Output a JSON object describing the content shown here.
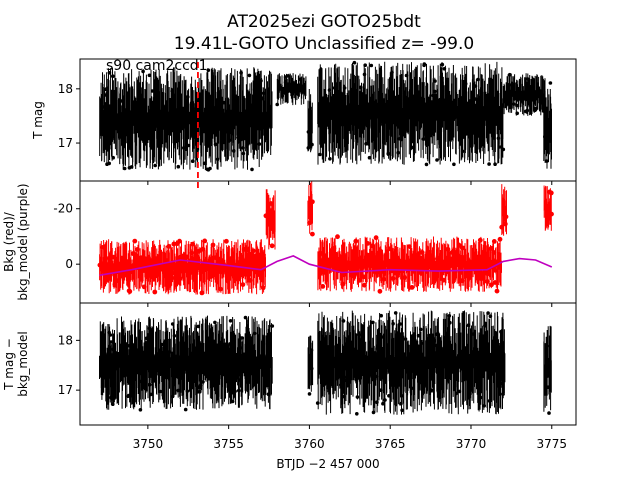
{
  "chart_data": [
    {
      "type": "scatter",
      "panel": "top",
      "title": "AT2025ezi  GOTO25bdt",
      "subtitle": "19.41L-GOTO Unclassified z= -99.0",
      "annotation": "s90 cam2ccd1",
      "ylabel": "T mag",
      "ylim": [
        18.55,
        16.3
      ],
      "yticks": [
        17,
        18
      ],
      "marker_line_x": 3753.1,
      "colors": {
        "points": "#000000",
        "marker_line": "#ff0000"
      },
      "series": [
        {
          "name": "T mag",
          "x_range": [
            3747.0,
            3757.7
          ],
          "y_range": [
            16.5,
            18.4
          ]
        },
        {
          "name": "T mag",
          "x_range": [
            3758.0,
            3759.8
          ],
          "y_range": [
            17.7,
            18.3
          ]
        },
        {
          "name": "T mag",
          "x_range": [
            3759.9,
            3760.2
          ],
          "y_range": [
            16.7,
            18.0
          ]
        },
        {
          "name": "T mag",
          "x_range": [
            3760.5,
            3772.0
          ],
          "y_range": [
            16.6,
            18.5
          ]
        },
        {
          "name": "T mag",
          "x_range": [
            3772.0,
            3774.5
          ],
          "y_range": [
            17.5,
            18.3
          ]
        },
        {
          "name": "T mag",
          "x_range": [
            3774.5,
            3775.0
          ],
          "y_range": [
            16.5,
            18.2
          ]
        }
      ]
    },
    {
      "type": "scatter",
      "panel": "middle",
      "ylabel": "Bkg (red)/\nbkg_model (purple)",
      "ylim": [
        -30,
        14
      ],
      "yticks": [
        0,
        -20
      ],
      "colors": {
        "bkg": "#ff0000",
        "bkg_model": "#bf00bf"
      },
      "series": [
        {
          "name": "Bkg",
          "x_range": [
            3747.0,
            3757.3
          ],
          "y_range": [
            -9,
            11
          ]
        },
        {
          "name": "Bkg",
          "x_range": [
            3757.3,
            3757.9
          ],
          "y_range": [
            -28,
            -5
          ]
        },
        {
          "name": "Bkg",
          "x_range": [
            3759.9,
            3760.2
          ],
          "y_range": [
            -30,
            -10
          ]
        },
        {
          "name": "Bkg",
          "x_range": [
            3760.5,
            3771.9
          ],
          "y_range": [
            -10,
            10
          ]
        },
        {
          "name": "Bkg",
          "x_range": [
            3771.9,
            3772.2
          ],
          "y_range": [
            -29,
            -10
          ]
        },
        {
          "name": "Bkg",
          "x_range": [
            3774.5,
            3775.0
          ],
          "y_range": [
            -29,
            -12
          ]
        },
        {
          "name": "bkg_model",
          "x": [
            3747.0,
            3749.0,
            3752.0,
            3755.0,
            3757.0,
            3758.0,
            3759.0,
            3760.0,
            3761.0,
            3762.0,
            3765.0,
            3768.0,
            3771.0,
            3772.0,
            3773.0,
            3774.0,
            3775.0
          ],
          "y": [
            4,
            2,
            -1.5,
            0.5,
            2,
            -1,
            -3,
            0,
            1.5,
            3,
            2,
            2.5,
            2,
            -1,
            -2,
            -1.5,
            1
          ]
        }
      ]
    },
    {
      "type": "scatter",
      "panel": "bottom",
      "xlabel": "BTJD −2 457 000",
      "ylabel": "T mag −\nbkg_model",
      "xlim": [
        3745.8,
        3776.5
      ],
      "xticks": [
        3750,
        3755,
        3760,
        3765,
        3770,
        3775
      ],
      "ylim": [
        18.75,
        16.3
      ],
      "yticks": [
        17,
        18
      ],
      "colors": {
        "points": "#000000"
      },
      "series": [
        {
          "name": "T mag − bkg_model",
          "x_range": [
            3747.0,
            3757.7
          ],
          "y_range": [
            16.6,
            18.5
          ]
        },
        {
          "name": "T mag − bkg_model",
          "x_range": [
            3759.9,
            3760.2
          ],
          "y_range": [
            16.9,
            18.2
          ]
        },
        {
          "name": "T mag − bkg_model",
          "x_range": [
            3760.5,
            3772.1
          ],
          "y_range": [
            16.5,
            18.6
          ]
        },
        {
          "name": "T mag − bkg_model",
          "x_range": [
            3774.5,
            3775.0
          ],
          "y_range": [
            16.5,
            18.3
          ]
        }
      ]
    }
  ]
}
